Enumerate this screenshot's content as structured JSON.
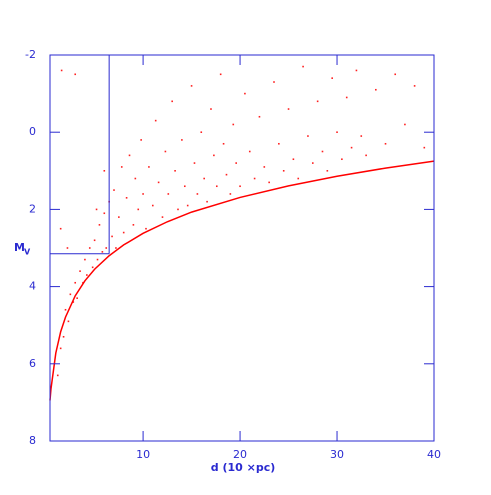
{
  "chart_data": {
    "type": "scatter",
    "x_label": "d (10 ×pc)",
    "y_label": "M",
    "y_label_subscript": "V",
    "xlim": [
      0.4,
      40
    ],
    "ylim": [
      -2,
      8
    ],
    "y_inverted": true,
    "xticks": [
      10,
      20,
      30,
      40
    ],
    "yticks": [
      -2,
      0,
      2,
      4,
      6,
      8
    ],
    "axis_color": "#2a2ad0",
    "series": [
      {
        "color": "#ff2020",
        "x": [
          1.2,
          1.5,
          1.8,
          2.0,
          2.3,
          2.5,
          2.8,
          3.0,
          3.2,
          3.5,
          3.8,
          4.0,
          4.2,
          4.5,
          4.8,
          5.0,
          5.3,
          5.5,
          5.8,
          6.0,
          6.2,
          6.5,
          6.8,
          7.0,
          7.2,
          7.5,
          7.8,
          8.0,
          8.3,
          8.6,
          9.0,
          9.2,
          9.5,
          9.8,
          10.0,
          10.3,
          10.6,
          11.0,
          11.3,
          11.6,
          12.0,
          12.3,
          12.6,
          13.0,
          13.3,
          13.6,
          14.0,
          14.3,
          14.6,
          15.0,
          15.3,
          15.6,
          16.0,
          16.3,
          16.6,
          17.0,
          17.3,
          17.6,
          18.0,
          18.3,
          18.6,
          19.0,
          19.3,
          19.6,
          20.0,
          20.5,
          21.0,
          21.5,
          22.0,
          22.5,
          23.0,
          23.5,
          24.0,
          24.5,
          25.0,
          25.5,
          26.0,
          26.5,
          27.0,
          27.5,
          28.0,
          28.5,
          29.0,
          29.5,
          30.0,
          30.5,
          31.0,
          31.5,
          32.0,
          32.5,
          33.0,
          34.0,
          35.0,
          36.0,
          37.0,
          38.0,
          39.0,
          3.0,
          1.6,
          6.0,
          5.2,
          2.2,
          1.5
        ],
        "values": [
          6.3,
          5.6,
          5.3,
          4.6,
          4.9,
          4.2,
          4.4,
          3.9,
          4.3,
          3.6,
          3.9,
          3.3,
          3.7,
          3.0,
          3.5,
          2.8,
          3.3,
          2.4,
          3.1,
          2.1,
          3.0,
          1.8,
          2.7,
          1.5,
          3.0,
          2.2,
          0.9,
          2.6,
          1.7,
          0.6,
          2.4,
          1.2,
          2.0,
          0.2,
          1.6,
          2.5,
          0.9,
          1.9,
          -0.3,
          1.3,
          2.2,
          0.5,
          1.6,
          -0.8,
          1.0,
          2.0,
          0.2,
          1.4,
          1.9,
          -1.2,
          0.8,
          1.6,
          0.0,
          1.2,
          1.8,
          -0.6,
          0.6,
          1.4,
          -1.5,
          0.3,
          1.1,
          1.6,
          -0.2,
          0.8,
          1.4,
          -1.0,
          0.5,
          1.2,
          -0.4,
          0.9,
          1.3,
          -1.3,
          0.3,
          1.0,
          -0.6,
          0.7,
          1.2,
          -1.7,
          0.1,
          0.8,
          -0.8,
          0.5,
          1.0,
          -1.4,
          0.0,
          0.7,
          -0.9,
          0.4,
          -1.6,
          0.1,
          0.6,
          -1.1,
          0.3,
          -1.5,
          -0.2,
          -1.2,
          0.4,
          -1.5,
          -1.6,
          1.0,
          2.0,
          3.0,
          2.5
        ]
      },
      {
        "type": "line",
        "color": "#ff0000",
        "x": [
          0.4,
          0.5,
          1,
          1.5,
          2,
          3,
          4,
          5,
          6.5,
          8,
          10,
          12.5,
          15,
          20,
          25,
          30,
          35,
          40
        ],
        "values": [
          6.95,
          6.65,
          5.72,
          5.17,
          4.79,
          4.24,
          3.85,
          3.55,
          3.2,
          2.92,
          2.62,
          2.32,
          2.07,
          1.69,
          1.39,
          1.14,
          0.93,
          0.75
        ]
      }
    ],
    "reference_lines": {
      "x": 6.5,
      "y": 3.15
    }
  }
}
